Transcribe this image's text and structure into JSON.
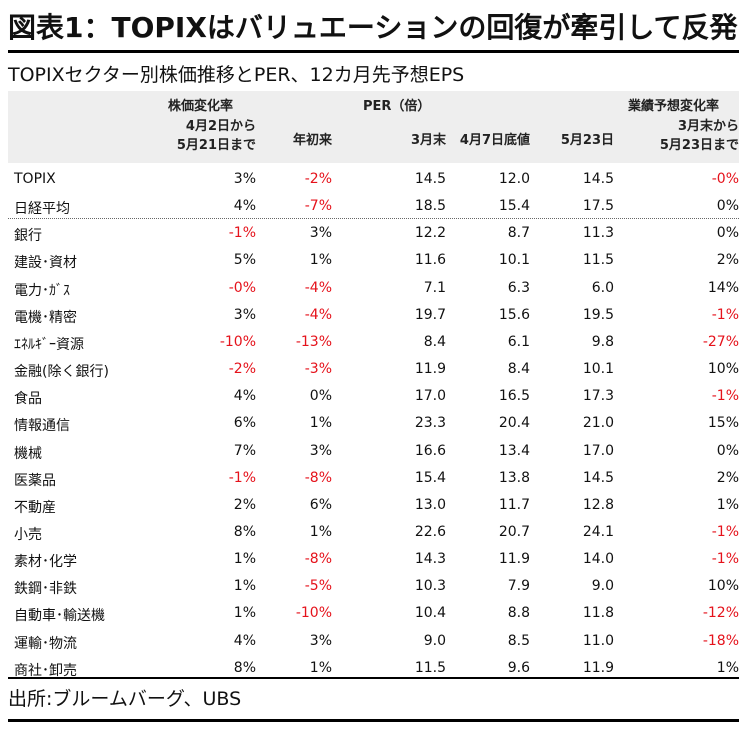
{
  "title": "図表1：TOPIXはバリュエーションの回復が牽引して反発",
  "subtitle": "TOPIXセクター別株価推移とPER、12カ月先予想EPS",
  "source": "出所:ブルームバーグ、UBS",
  "colors": {
    "negative": "#e5121b",
    "header_bg": "#eeeeee"
  },
  "chart_data": {
    "type": "table",
    "group_headers": [
      "株価変化率",
      "PER（倍）",
      "業績予想変化率"
    ],
    "columns": [
      "4月2日から\n5月21日まで",
      "年初来",
      "3月末",
      "4月7日底値",
      "5月23日",
      "3月末から\n5月23日まで"
    ],
    "rows": [
      {
        "name": "TOPIX",
        "values": [
          "3%",
          "-2%",
          "14.5",
          "12.0",
          "14.5",
          "-0%"
        ]
      },
      {
        "name": "日経平均",
        "values": [
          "4%",
          "-7%",
          "18.5",
          "15.4",
          "17.5",
          "0%"
        ]
      },
      {
        "name": "銀行",
        "values": [
          "-1%",
          "3%",
          "12.2",
          "8.7",
          "11.3",
          "0%"
        ]
      },
      {
        "name": "建設･資材",
        "values": [
          "5%",
          "1%",
          "11.6",
          "10.1",
          "11.5",
          "2%"
        ]
      },
      {
        "name": "電力･ｶﾞｽ",
        "values": [
          "-0%",
          "-4%",
          "7.1",
          "6.3",
          "6.0",
          "14%"
        ]
      },
      {
        "name": "電機･精密",
        "values": [
          "3%",
          "-4%",
          "19.7",
          "15.6",
          "19.5",
          "-1%"
        ]
      },
      {
        "name": "ｴﾈﾙｷﾞｰ資源",
        "values": [
          "-10%",
          "-13%",
          "8.4",
          "6.1",
          "9.8",
          "-27%"
        ]
      },
      {
        "name": "金融(除く銀行)",
        "values": [
          "-2%",
          "-3%",
          "11.9",
          "8.4",
          "10.1",
          "10%"
        ]
      },
      {
        "name": "食品",
        "values": [
          "4%",
          "0%",
          "17.0",
          "16.5",
          "17.3",
          "-1%"
        ]
      },
      {
        "name": "情報通信",
        "values": [
          "6%",
          "1%",
          "23.3",
          "20.4",
          "21.0",
          "15%"
        ]
      },
      {
        "name": "機械",
        "values": [
          "7%",
          "3%",
          "16.6",
          "13.4",
          "17.0",
          "0%"
        ]
      },
      {
        "name": "医薬品",
        "values": [
          "-1%",
          "-8%",
          "15.4",
          "13.8",
          "14.5",
          "2%"
        ]
      },
      {
        "name": "不動産",
        "values": [
          "2%",
          "6%",
          "13.0",
          "11.7",
          "12.8",
          "1%"
        ]
      },
      {
        "name": "小売",
        "values": [
          "8%",
          "1%",
          "22.6",
          "20.7",
          "24.1",
          "-1%"
        ]
      },
      {
        "name": "素材･化学",
        "values": [
          "1%",
          "-8%",
          "14.3",
          "11.9",
          "14.0",
          "-1%"
        ]
      },
      {
        "name": "鉄鋼･非鉄",
        "values": [
          "1%",
          "-5%",
          "10.3",
          "7.9",
          "9.0",
          "10%"
        ]
      },
      {
        "name": "自動車･輸送機",
        "values": [
          "1%",
          "-10%",
          "10.4",
          "8.8",
          "11.8",
          "-12%"
        ]
      },
      {
        "name": "運輸･物流",
        "values": [
          "4%",
          "3%",
          "9.0",
          "8.5",
          "11.0",
          "-18%"
        ]
      },
      {
        "name": "商社･卸売",
        "values": [
          "8%",
          "1%",
          "11.5",
          "9.6",
          "11.9",
          "1%"
        ]
      }
    ]
  }
}
